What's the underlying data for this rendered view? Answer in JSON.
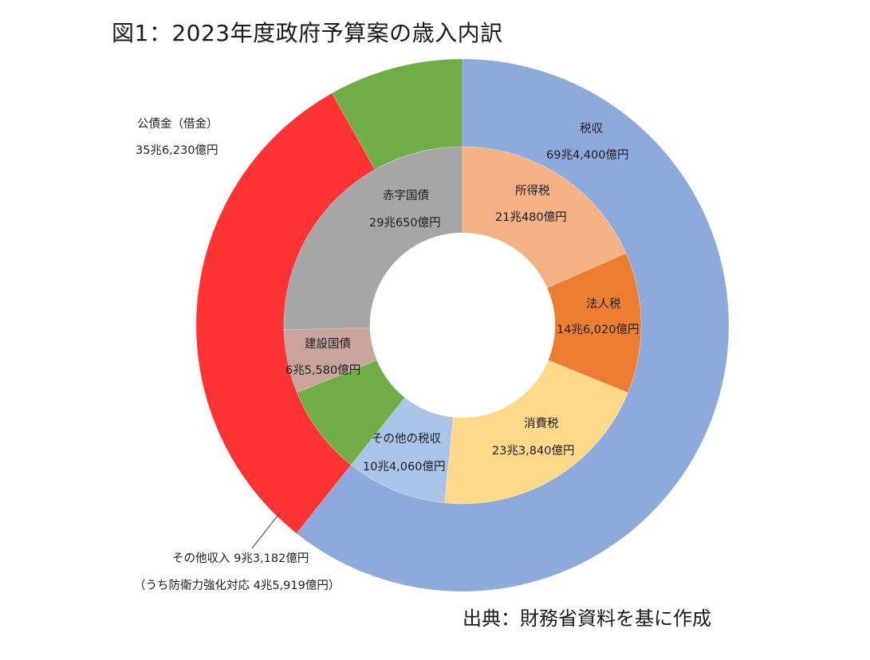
{
  "title": "図1：2023年度政府予算案の歳入内訳",
  "source": "出典：財務省資料を基に作成",
  "chart_data": {
    "type": "donut",
    "unit": "億円",
    "outer": [
      {
        "key": "tax",
        "name": "税収",
        "value_label": "69兆4,400億円",
        "value": 694400,
        "color": "#8EA9DB"
      },
      {
        "key": "debt",
        "name": "公債金（借金）",
        "value_label": "35兆6,230億円",
        "value": 356230,
        "color": "#FF3333"
      },
      {
        "key": "other",
        "name": "その他収入",
        "value_label": "9兆3,182億円",
        "value": 93182,
        "color": "#70AD47",
        "note": "（うち防衛力強化対応 4兆5,919億円）"
      }
    ],
    "inner": [
      {
        "key": "income",
        "name": "所得税",
        "value_label": "21兆480億円",
        "value": 210480,
        "color": "#F4B183"
      },
      {
        "key": "corp",
        "name": "法人税",
        "value_label": "14兆6,020億円",
        "value": 146020,
        "color": "#ED7D31"
      },
      {
        "key": "consumption",
        "name": "消費税",
        "value_label": "23兆3,840億円",
        "value": 233840,
        "color": "#FFD98A"
      },
      {
        "key": "othertax",
        "name": "その他の税収",
        "value_label": "10兆4,060億円",
        "value": 104060,
        "color": "#A9C4E8"
      },
      {
        "key": "othergreen",
        "name": "",
        "value_label": "",
        "value": 93182,
        "color": "#70AD47"
      },
      {
        "key": "construction",
        "name": "建設国債",
        "value_label": "6兆5,580億円",
        "value": 65580,
        "color": "#C9A49A"
      },
      {
        "key": "deficit",
        "name": "赤字国債",
        "value_label": "29兆650億円",
        "value": 290650,
        "color": "#A6A6A6"
      }
    ]
  }
}
